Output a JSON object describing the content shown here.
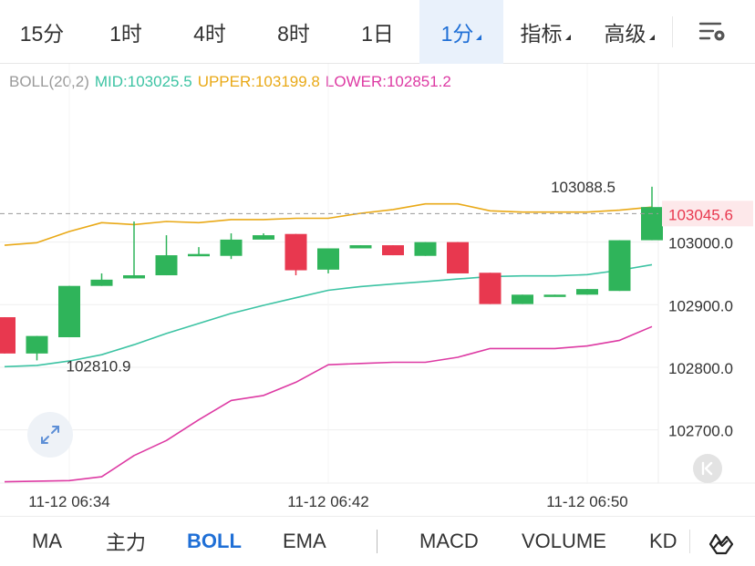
{
  "timeframes": [
    {
      "label": "15分",
      "active": false,
      "caret": false
    },
    {
      "label": "1时",
      "active": false,
      "caret": false
    },
    {
      "label": "4时",
      "active": false,
      "caret": false
    },
    {
      "label": "8时",
      "active": false,
      "caret": false
    },
    {
      "label": "1日",
      "active": false,
      "caret": false
    },
    {
      "label": "1分",
      "active": true,
      "caret": true
    },
    {
      "label": "指标",
      "active": false,
      "caret": true
    },
    {
      "label": "高级",
      "active": false,
      "caret": true
    }
  ],
  "legend": {
    "name": "BOLL(20,2)",
    "mid": "MID:103025.5",
    "upper": "UPPER:103199.8",
    "lower": "LOWER:102851.2"
  },
  "colors": {
    "up": "#2fb45a",
    "down": "#e8384f",
    "mid": "#3cc3a3",
    "upper": "#e9a917",
    "lower": "#dd3aa3",
    "accent": "#1f6fd6"
  },
  "indicators": [
    {
      "label": "MA",
      "active": false
    },
    {
      "label": "主力",
      "active": false
    },
    {
      "label": "BOLL",
      "active": true
    },
    {
      "label": "EMA",
      "active": false
    },
    {
      "label": "MACD",
      "active": false
    },
    {
      "label": "VOLUME",
      "active": false
    },
    {
      "label": "KD",
      "active": false
    }
  ],
  "chart_data": {
    "type": "candlestick",
    "ylim": [
      102615,
      103215
    ],
    "y_ticks": [
      103000,
      102900,
      102800,
      102700
    ],
    "y_tick_labels": [
      "103000.0",
      "102900.0",
      "102800.0",
      "102700.0"
    ],
    "x_tick_labels": [
      {
        "index": 2,
        "label": "11-12 06:34"
      },
      {
        "index": 10,
        "label": "11-12 06:42"
      },
      {
        "index": 18,
        "label": "11-12 06:50"
      }
    ],
    "candles": [
      {
        "open": 102880,
        "close": 102822,
        "high": 102880,
        "low": 102822
      },
      {
        "open": 102822,
        "close": 102850,
        "high": 102850,
        "low": 102811
      },
      {
        "open": 102848,
        "close": 102930,
        "high": 102930,
        "low": 102848
      },
      {
        "open": 102930,
        "close": 102940,
        "high": 102950,
        "low": 102930
      },
      {
        "open": 102942,
        "close": 102947,
        "high": 103033,
        "low": 102942
      },
      {
        "open": 102947,
        "close": 102979,
        "high": 103011,
        "low": 102947
      },
      {
        "open": 102979,
        "close": 102981,
        "high": 102992,
        "low": 102979
      },
      {
        "open": 102978,
        "close": 103004,
        "high": 103014,
        "low": 102973
      },
      {
        "open": 103004,
        "close": 103011,
        "high": 103014,
        "low": 103004
      },
      {
        "open": 103013,
        "close": 102955,
        "high": 103013,
        "low": 102947
      },
      {
        "open": 102956,
        "close": 102990,
        "high": 102990,
        "low": 102950
      },
      {
        "open": 102990,
        "close": 102995,
        "high": 102995,
        "low": 102990
      },
      {
        "open": 102995,
        "close": 102979,
        "high": 102995,
        "low": 102979
      },
      {
        "open": 102978,
        "close": 103000,
        "high": 103000,
        "low": 102978
      },
      {
        "open": 103000,
        "close": 102950,
        "high": 103000,
        "low": 102950
      },
      {
        "open": 102951,
        "close": 102901,
        "high": 102951,
        "low": 102901
      },
      {
        "open": 102901,
        "close": 102916,
        "high": 102916,
        "low": 102901
      },
      {
        "open": 102914,
        "close": 102916,
        "high": 102916,
        "low": 102914
      },
      {
        "open": 102916,
        "close": 102925,
        "high": 102925,
        "low": 102916
      },
      {
        "open": 102922,
        "close": 103003,
        "high": 103003,
        "low": 102922
      },
      {
        "open": 103003,
        "close": 103056,
        "high": 103088.5,
        "low": 103003
      }
    ],
    "series": [
      {
        "name": "UPPER",
        "values": [
          102995,
          102999,
          103017,
          103031,
          103028,
          103033,
          103031,
          103036,
          103036,
          103038,
          103038,
          103046,
          103052,
          103061,
          103061,
          103050,
          103048,
          103048,
          103048,
          103051,
          103056
        ]
      },
      {
        "name": "MID",
        "values": [
          102801,
          102803,
          102810,
          102820,
          102836,
          102854,
          102870,
          102886,
          102899,
          102911,
          102923,
          102929,
          102933,
          102937,
          102941,
          102945,
          102946,
          102946,
          102948,
          102955,
          102964
        ]
      },
      {
        "name": "LOWER",
        "values": [
          102617,
          102618,
          102619,
          102625,
          102659,
          102683,
          102716,
          102747,
          102755,
          102776,
          102804,
          102806,
          102808,
          102808,
          102816,
          102830,
          102830,
          102830,
          102834,
          102843,
          102865
        ]
      }
    ],
    "annotations": [
      {
        "label": "103088.5",
        "index": 20,
        "value": 103088.5
      },
      {
        "label": "102810.9",
        "index": 1,
        "value": 102810.9
      }
    ],
    "current_price": {
      "label": "103045.6",
      "value": 103045.6
    },
    "legend": "top-left",
    "grid": true
  }
}
